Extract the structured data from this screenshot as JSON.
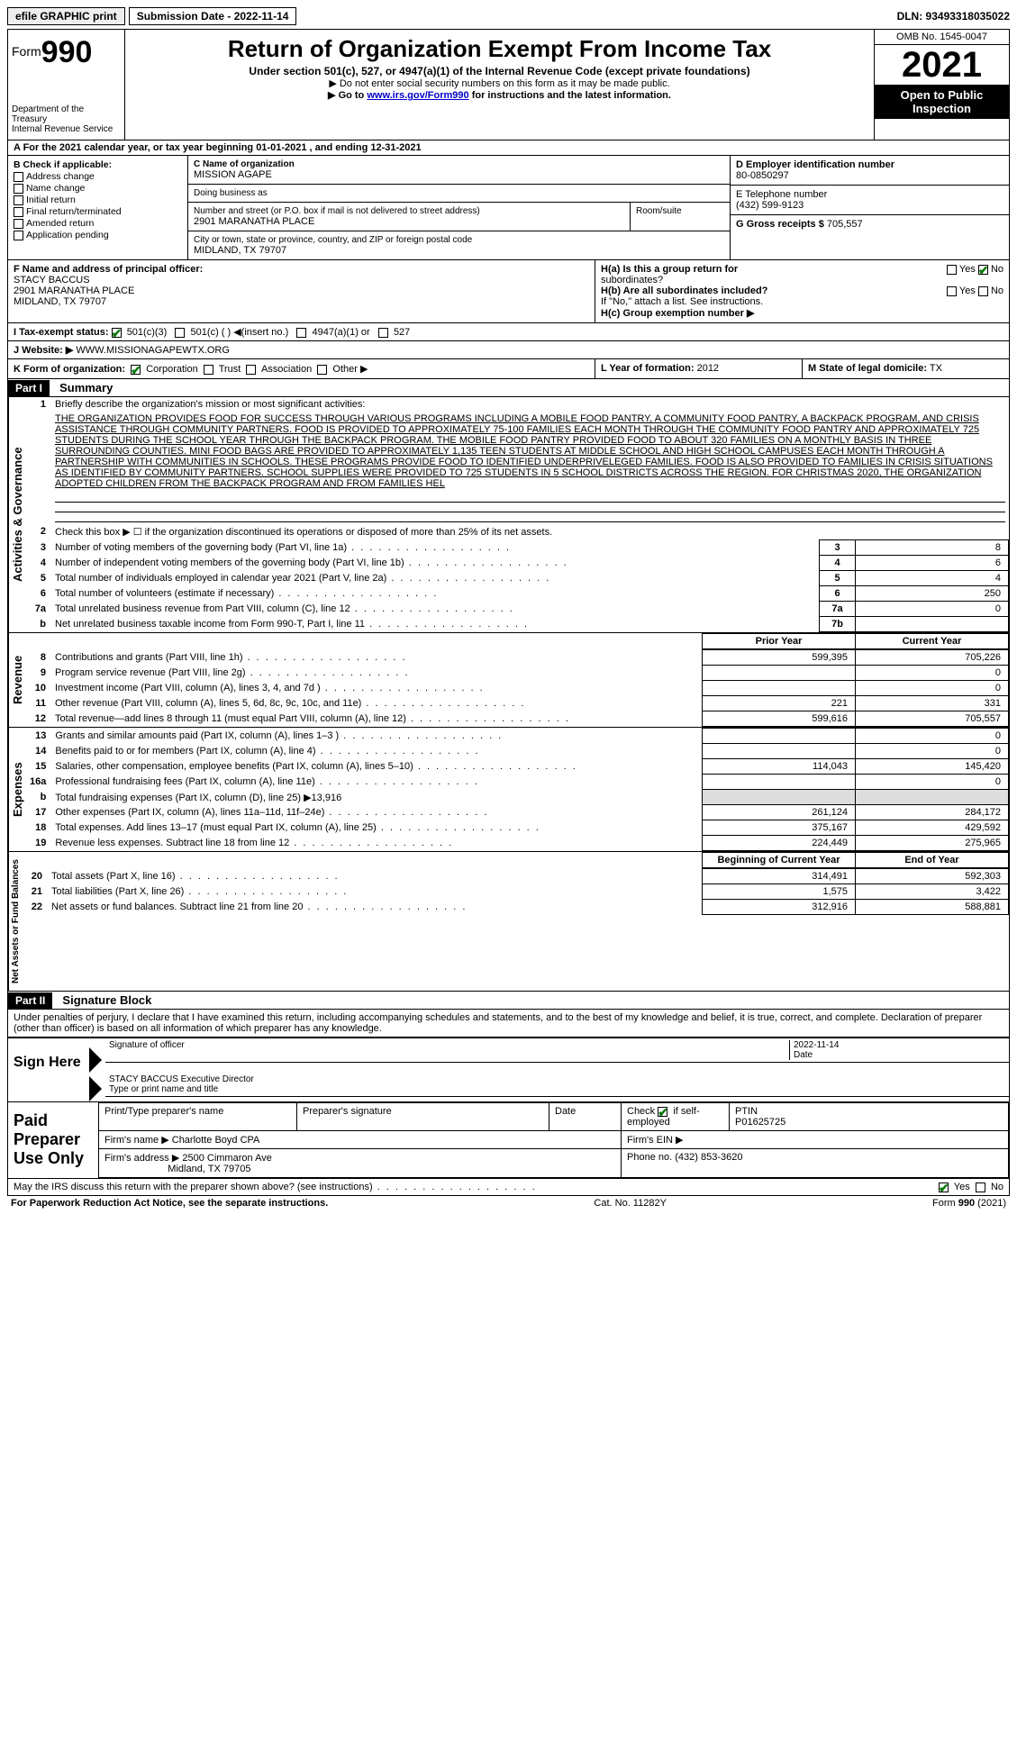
{
  "topbar": {
    "efile": "efile GRAPHIC print",
    "submission": "Submission Date - 2022-11-14",
    "dln": "DLN: 93493318035022"
  },
  "header": {
    "form_label": "Form",
    "form_num": "990",
    "dept": "Department of the Treasury",
    "irs": "Internal Revenue Service",
    "title": "Return of Organization Exempt From Income Tax",
    "subtitle": "Under section 501(c), 527, or 4947(a)(1) of the Internal Revenue Code (except private foundations)",
    "note1": "▶ Do not enter social security numbers on this form as it may be made public.",
    "note2_pre": "▶ Go to ",
    "note2_link": "www.irs.gov/Form990",
    "note2_post": " for instructions and the latest information.",
    "omb": "OMB No. 1545-0047",
    "year": "2021",
    "open": "Open to Public Inspection"
  },
  "A": {
    "text": "A For the 2021 calendar year, or tax year beginning 01-01-2021   , and ending 12-31-2021"
  },
  "B": {
    "title": "B Check if applicable:",
    "items": [
      "Address change",
      "Name change",
      "Initial return",
      "Final return/terminated",
      "Amended return",
      "Application pending"
    ]
  },
  "C": {
    "label": "C Name of organization",
    "name": "MISSION AGAPE",
    "dba_label": "Doing business as",
    "dba": "",
    "addr_label": "Number and street (or P.O. box if mail is not delivered to street address)",
    "room_label": "Room/suite",
    "addr": "2901 MARANATHA PLACE",
    "city_label": "City or town, state or province, country, and ZIP or foreign postal code",
    "city": "MIDLAND, TX  79707"
  },
  "D": {
    "label": "D Employer identification number",
    "val": "80-0850297"
  },
  "E": {
    "label": "E Telephone number",
    "val": "(432) 599-9123"
  },
  "G": {
    "label": "G Gross receipts $",
    "val": "705,557"
  },
  "F": {
    "label": "F  Name and address of principal officer:",
    "name": "STACY BACCUS",
    "addr1": "2901 MARANATHA PLACE",
    "addr2": "MIDLAND, TX  79707"
  },
  "H": {
    "a": "H(a)  Is this a group return for",
    "a2": "subordinates?",
    "b": "H(b)  Are all subordinates included?",
    "b2": "If \"No,\" attach a list. See instructions.",
    "c": "H(c)  Group exemption number ▶",
    "yes": "Yes",
    "no": "No"
  },
  "I": {
    "label": "I   Tax-exempt status:",
    "o1": "501(c)(3)",
    "o2": "501(c) (  ) ◀(insert no.)",
    "o3": "4947(a)(1) or",
    "o4": "527"
  },
  "J": {
    "label": "J   Website: ▶",
    "val": "WWW.MISSIONAGAPEWTX.ORG"
  },
  "K": {
    "label": "K Form of organization:",
    "o1": "Corporation",
    "o2": "Trust",
    "o3": "Association",
    "o4": "Other ▶"
  },
  "L": {
    "label": "L Year of formation:",
    "val": "2012"
  },
  "M": {
    "label": "M State of legal domicile:",
    "val": "TX"
  },
  "parts": {
    "p1": "Part I",
    "p1t": "Summary",
    "p2": "Part II",
    "p2t": "Signature Block"
  },
  "summary": {
    "line1_label": "Briefly describe the organization's mission or most significant activities:",
    "mission": "THE ORGANIZATION PROVIDES FOOD FOR SUCCESS THROUGH VARIOUS PROGRAMS INCLUDING A MOBILE FOOD PANTRY, A COMMUNITY FOOD PANTRY, A BACKPACK PROGRAM, AND CRISIS ASSISTANCE THROUGH COMMUNITY PARTNERS. FOOD IS PROVIDED TO APPROXIMATELY 75-100 FAMILIES EACH MONTH THROUGH THE COMMUNITY FOOD PANTRY AND APPROXIMATELY 725 STUDENTS DURING THE SCHOOL YEAR THROUGH THE BACKPACK PROGRAM. THE MOBILE FOOD PANTRY PROVIDED FOOD TO ABOUT 320 FAMILIES ON A MONTHLY BASIS IN THREE SURROUNDING COUNTIES. MINI FOOD BAGS ARE PROVIDED TO APPROXIMATELY 1,135 TEEN STUDENTS AT MIDDLE SCHOOL AND HIGH SCHOOL CAMPUSES EACH MONTH THROUGH A PARTNERSHIP WITH COMMUNITIES IN SCHOOLS. THESE PROGRAMS PROVIDE FOOD TO IDENTIFIED UNDERPRIVELEGED FAMILIES. FOOD IS ALSO PROVIDED TO FAMILIES IN CRISIS SITUATIONS AS IDENTIFIED BY COMMUNITY PARTNERS. SCHOOL SUPPLIES WERE PROVIDED TO 725 STUDENTS IN 5 SCHOOL DISTRICTS ACROSS THE REGION. FOR CHRISTMAS 2020, THE ORGANIZATION ADOPTED CHILDREN FROM THE BACKPACK PROGRAM AND FROM FAMILIES HEL",
    "line2": "Check this box ▶ ☐ if the organization discontinued its operations or disposed of more than 25% of its net assets.",
    "rows_gov": [
      {
        "n": "3",
        "t": "Number of voting members of the governing body (Part VI, line 1a)",
        "box": "3",
        "v": "8"
      },
      {
        "n": "4",
        "t": "Number of independent voting members of the governing body (Part VI, line 1b)",
        "box": "4",
        "v": "6"
      },
      {
        "n": "5",
        "t": "Total number of individuals employed in calendar year 2021 (Part V, line 2a)",
        "box": "5",
        "v": "4"
      },
      {
        "n": "6",
        "t": "Total number of volunteers (estimate if necessary)",
        "box": "6",
        "v": "250"
      },
      {
        "n": "7a",
        "t": "Total unrelated business revenue from Part VIII, column (C), line 12",
        "box": "7a",
        "v": "0"
      },
      {
        "n": "b",
        "t": "Net unrelated business taxable income from Form 990-T, Part I, line 11",
        "box": "7b",
        "v": ""
      }
    ],
    "prior_hdr": "Prior Year",
    "curr_hdr": "Current Year",
    "begin_hdr": "Beginning of Current Year",
    "end_hdr": "End of Year",
    "rows_rev": [
      {
        "n": "8",
        "t": "Contributions and grants (Part VIII, line 1h)",
        "p": "599,395",
        "c": "705,226"
      },
      {
        "n": "9",
        "t": "Program service revenue (Part VIII, line 2g)",
        "p": "",
        "c": "0"
      },
      {
        "n": "10",
        "t": "Investment income (Part VIII, column (A), lines 3, 4, and 7d )",
        "p": "",
        "c": "0"
      },
      {
        "n": "11",
        "t": "Other revenue (Part VIII, column (A), lines 5, 6d, 8c, 9c, 10c, and 11e)",
        "p": "221",
        "c": "331"
      },
      {
        "n": "12",
        "t": "Total revenue—add lines 8 through 11 (must equal Part VIII, column (A), line 12)",
        "p": "599,616",
        "c": "705,557"
      }
    ],
    "rows_exp": [
      {
        "n": "13",
        "t": "Grants and similar amounts paid (Part IX, column (A), lines 1–3 )",
        "p": "",
        "c": "0"
      },
      {
        "n": "14",
        "t": "Benefits paid to or for members (Part IX, column (A), line 4)",
        "p": "",
        "c": "0"
      },
      {
        "n": "15",
        "t": "Salaries, other compensation, employee benefits (Part IX, column (A), lines 5–10)",
        "p": "114,043",
        "c": "145,420"
      },
      {
        "n": "16a",
        "t": "Professional fundraising fees (Part IX, column (A), line 11e)",
        "p": "",
        "c": "0"
      },
      {
        "n": "b",
        "t": "Total fundraising expenses (Part IX, column (D), line 25) ▶13,916",
        "p": "SHADE",
        "c": "SHADE"
      },
      {
        "n": "17",
        "t": "Other expenses (Part IX, column (A), lines 11a–11d, 11f–24e)",
        "p": "261,124",
        "c": "284,172"
      },
      {
        "n": "18",
        "t": "Total expenses. Add lines 13–17 (must equal Part IX, column (A), line 25)",
        "p": "375,167",
        "c": "429,592"
      },
      {
        "n": "19",
        "t": "Revenue less expenses. Subtract line 18 from line 12",
        "p": "224,449",
        "c": "275,965"
      }
    ],
    "rows_net": [
      {
        "n": "20",
        "t": "Total assets (Part X, line 16)",
        "p": "314,491",
        "c": "592,303"
      },
      {
        "n": "21",
        "t": "Total liabilities (Part X, line 26)",
        "p": "1,575",
        "c": "3,422"
      },
      {
        "n": "22",
        "t": "Net assets or fund balances. Subtract line 21 from line 20",
        "p": "312,916",
        "c": "588,881"
      }
    ],
    "tabs": {
      "gov": "Activities & Governance",
      "rev": "Revenue",
      "exp": "Expenses",
      "net": "Net Assets or Fund Balances"
    }
  },
  "sig": {
    "declaration": "Under penalties of perjury, I declare that I have examined this return, including accompanying schedules and statements, and to the best of my knowledge and belief, it is true, correct, and complete. Declaration of preparer (other than officer) is based on all information of which preparer has any knowledge.",
    "sign_here": "Sign Here",
    "sig_officer": "Signature of officer",
    "date_lbl": "Date",
    "date": "2022-11-14",
    "name_title": "STACY BACCUS  Executive Director",
    "type_name": "Type or print name and title",
    "paid": "Paid Preparer Use Only",
    "h1": "Print/Type preparer's name",
    "h2": "Preparer's signature",
    "h3": "Date",
    "h4_pre": "Check",
    "h4_post": "if self-employed",
    "h5": "PTIN",
    "ptin": "P01625725",
    "firm_name_lbl": "Firm's name   ▶",
    "firm_name": "Charlotte Boyd CPA",
    "firm_ein_lbl": "Firm's EIN ▶",
    "firm_addr_lbl": "Firm's address ▶",
    "firm_addr1": "2500 Cimmaron Ave",
    "firm_addr2": "Midland, TX  79705",
    "phone_lbl": "Phone no.",
    "phone": "(432) 853-3620",
    "discuss": "May the IRS discuss this return with the preparer shown above? (see instructions)",
    "yes": "Yes",
    "no": "No"
  },
  "footer": {
    "left": "For Paperwork Reduction Act Notice, see the separate instructions.",
    "mid": "Cat. No. 11282Y",
    "right": "Form 990 (2021)"
  }
}
